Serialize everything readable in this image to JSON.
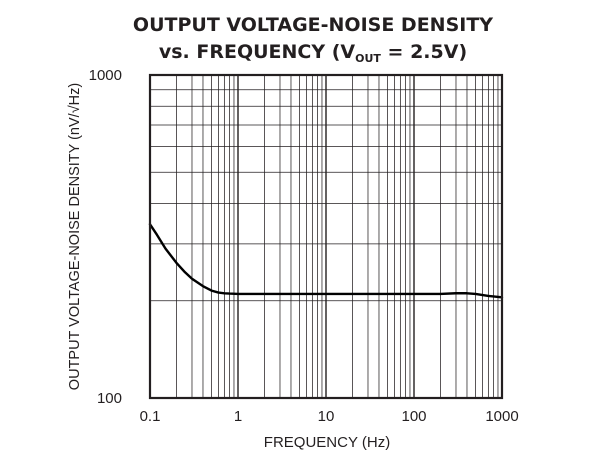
{
  "chart_data": {
    "type": "line",
    "title": {
      "line1": "OUTPUT VOLTAGE-NOISE DENSITY",
      "line2_prefix": "vs. FREQUENCY (V",
      "line2_subscript": "OUT",
      "line2_suffix": " = 2.5V)"
    },
    "xlabel": "FREQUENCY (Hz)",
    "ylabel": "OUTPUT VOLTAGE-NOISE DENSITY (nV/√Hz)",
    "xscale": "log",
    "yscale": "log",
    "xlim": [
      0.1,
      1000
    ],
    "ylim": [
      100,
      1000
    ],
    "x_ticks": [
      0.1,
      1,
      10,
      100,
      1000
    ],
    "x_tick_labels": [
      "0.1",
      "1",
      "10",
      "100",
      "1000"
    ],
    "y_ticks": [
      100,
      1000
    ],
    "y_tick_labels": [
      "100",
      "1000"
    ],
    "grid": true,
    "series": [
      {
        "color": "#000000",
        "x": [
          0.1,
          0.12,
          0.15,
          0.2,
          0.25,
          0.3,
          0.4,
          0.5,
          0.6,
          0.7,
          0.8,
          1,
          2,
          5,
          10,
          20,
          50,
          100,
          200,
          300,
          400,
          500,
          700,
          1000
        ],
        "y": [
          345,
          320,
          290,
          262,
          245,
          234,
          222,
          215,
          212,
          211,
          210.5,
          210,
          210,
          210,
          210,
          210,
          210,
          210,
          210,
          211,
          211,
          210,
          207,
          205
        ]
      }
    ]
  }
}
